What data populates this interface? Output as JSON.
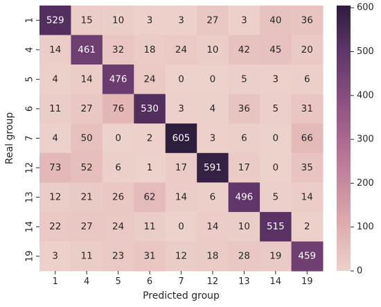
{
  "chart_data": {
    "type": "heatmap",
    "title": "",
    "xlabel": "Predicted group",
    "ylabel": "Real group",
    "x_categories": [
      "1",
      "4",
      "5",
      "6",
      "7",
      "12",
      "13",
      "14",
      "19"
    ],
    "y_categories": [
      "1",
      "4",
      "5",
      "6",
      "7",
      "12",
      "13",
      "14",
      "19"
    ],
    "values": [
      [
        529,
        15,
        10,
        3,
        3,
        27,
        3,
        40,
        36
      ],
      [
        14,
        461,
        32,
        18,
        24,
        10,
        42,
        45,
        20
      ],
      [
        4,
        14,
        476,
        24,
        0,
        0,
        5,
        3,
        6
      ],
      [
        11,
        27,
        76,
        530,
        3,
        4,
        36,
        5,
        31
      ],
      [
        4,
        50,
        0,
        2,
        605,
        3,
        6,
        0,
        66
      ],
      [
        73,
        52,
        6,
        1,
        17,
        591,
        17,
        0,
        35
      ],
      [
        12,
        21,
        26,
        62,
        14,
        6,
        496,
        5,
        14
      ],
      [
        22,
        27,
        24,
        11,
        0,
        14,
        10,
        515,
        2
      ],
      [
        3,
        11,
        23,
        31,
        12,
        18,
        28,
        19,
        459
      ]
    ],
    "colorbar": {
      "range": [
        0,
        605
      ],
      "ticks": [
        0,
        100,
        200,
        300,
        400,
        500,
        600
      ],
      "tick_labels": [
        "0",
        "100",
        "200",
        "300",
        "400",
        "500",
        "600"
      ],
      "colors": [
        "#edd1cb",
        "#dfaeaf",
        "#c98a9f",
        "#ab688f",
        "#864c7e",
        "#5e3468",
        "#2d1e3e"
      ]
    },
    "grid": false
  }
}
